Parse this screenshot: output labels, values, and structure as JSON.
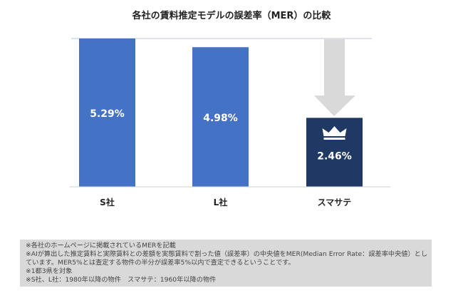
{
  "chart_data": {
    "type": "bar",
    "title": "各社の賃料推定モデルの誤差率（MER）の比較",
    "categories": [
      "S社",
      "L社",
      "スマサテ"
    ],
    "values": [
      5.29,
      4.98,
      2.46
    ],
    "labels": [
      "5.29%",
      "4.98%",
      "2.46%"
    ],
    "ylim": [
      0,
      5.29
    ],
    "colors": [
      "#4472c4",
      "#4472c4",
      "#1f3864"
    ],
    "highlight": "スマサテ",
    "icons": [
      "down-arrow-icon",
      "crown-icon"
    ]
  },
  "notes": [
    "※各社のホームページに掲載されているMERを記載",
    "※AIが算出した推定賃料と実際賃料との差額を実態賃料で割った値（誤差率）の中央値をMER(Median Error Rate：誤差率中央値）としています。MER5%とは査定する物件の半分が誤差率5%以内で査定できるということです。",
    "※1都3県を対象",
    "※S社、L社：1980年以降の物件　スマサテ：1960年以降の物件"
  ]
}
